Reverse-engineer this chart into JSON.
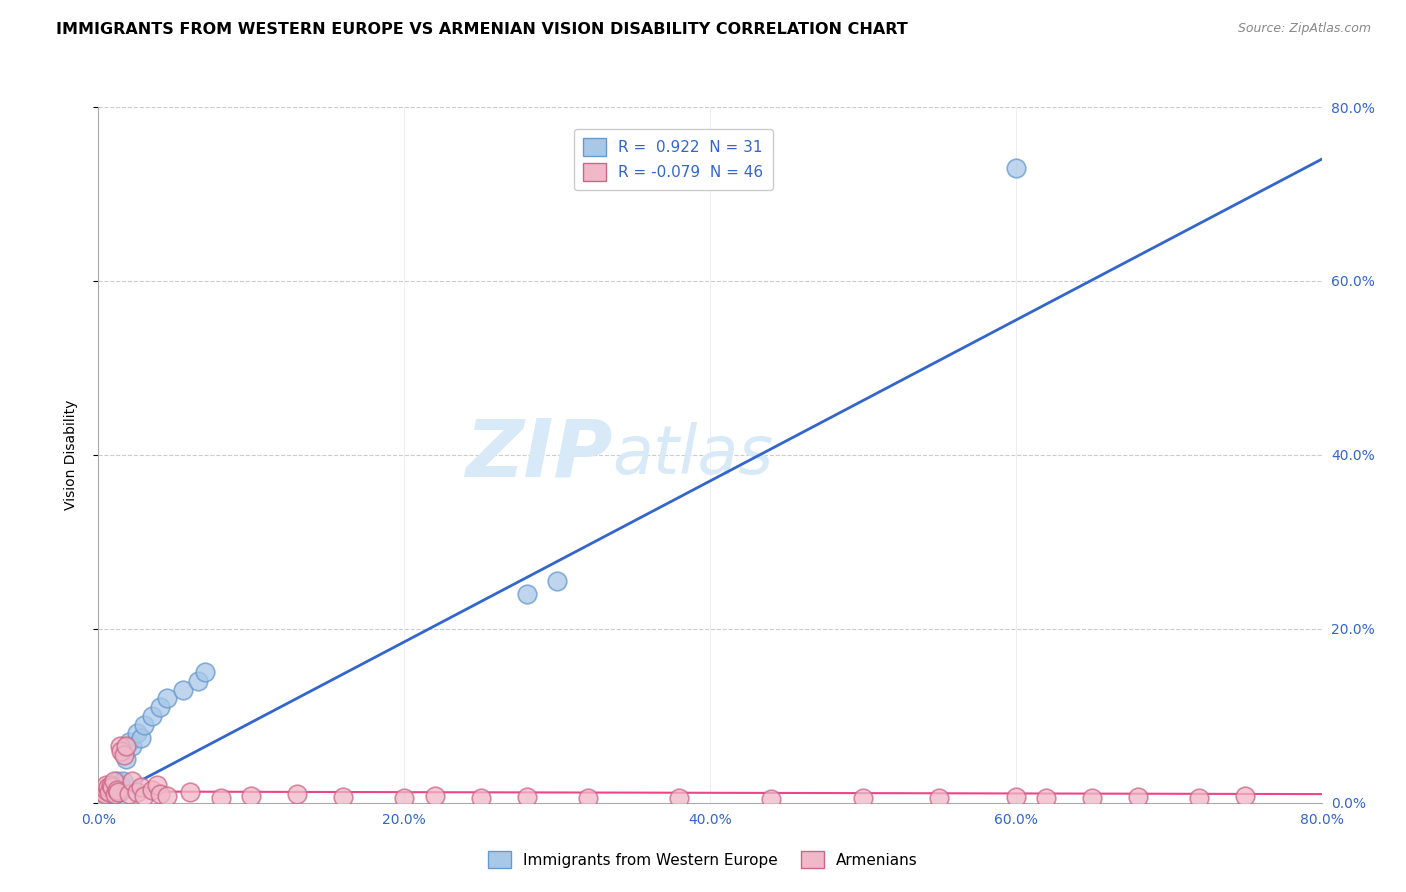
{
  "title": "IMMIGRANTS FROM WESTERN EUROPE VS ARMENIAN VISION DISABILITY CORRELATION CHART",
  "source": "Source: ZipAtlas.com",
  "ylabel": "Vision Disability",
  "xlabel": "",
  "xlim": [
    0.0,
    0.8
  ],
  "ylim": [
    0.0,
    0.8
  ],
  "xticks": [
    0.0,
    0.2,
    0.4,
    0.6,
    0.8
  ],
  "yticks": [
    0.0,
    0.2,
    0.4,
    0.6,
    0.8
  ],
  "color_blue": "#a8c8e8",
  "color_blue_edge": "#6699cc",
  "color_pink": "#f0b8c8",
  "color_pink_edge": "#cc6688",
  "line_blue": "#3366cc",
  "line_pink": "#ee4488",
  "watermark_zip": "ZIP",
  "watermark_atlas": "atlas",
  "watermark_color": "#d8eaf8",
  "title_fontsize": 11.5,
  "source_fontsize": 9,
  "axis_label_fontsize": 10,
  "tick_fontsize": 10,
  "blue_scatter_x": [
    0.002,
    0.003,
    0.004,
    0.005,
    0.006,
    0.007,
    0.008,
    0.009,
    0.01,
    0.011,
    0.012,
    0.013,
    0.014,
    0.015,
    0.016,
    0.017,
    0.018,
    0.02,
    0.022,
    0.025,
    0.028,
    0.03,
    0.035,
    0.04,
    0.045,
    0.055,
    0.065,
    0.07,
    0.28,
    0.3,
    0.6
  ],
  "blue_scatter_y": [
    0.003,
    0.004,
    0.005,
    0.006,
    0.007,
    0.008,
    0.009,
    0.01,
    0.012,
    0.01,
    0.025,
    0.015,
    0.012,
    0.02,
    0.025,
    0.06,
    0.05,
    0.07,
    0.065,
    0.08,
    0.075,
    0.09,
    0.1,
    0.11,
    0.12,
    0.13,
    0.14,
    0.15,
    0.24,
    0.255,
    0.73
  ],
  "pink_scatter_x": [
    0.002,
    0.003,
    0.004,
    0.005,
    0.005,
    0.006,
    0.007,
    0.008,
    0.009,
    0.01,
    0.011,
    0.012,
    0.013,
    0.014,
    0.015,
    0.017,
    0.018,
    0.02,
    0.022,
    0.025,
    0.028,
    0.03,
    0.035,
    0.038,
    0.04,
    0.045,
    0.06,
    0.08,
    0.1,
    0.13,
    0.16,
    0.2,
    0.22,
    0.25,
    0.28,
    0.32,
    0.38,
    0.44,
    0.5,
    0.55,
    0.6,
    0.62,
    0.65,
    0.68,
    0.72,
    0.75
  ],
  "pink_scatter_y": [
    0.008,
    0.012,
    0.01,
    0.015,
    0.02,
    0.018,
    0.012,
    0.02,
    0.018,
    0.025,
    0.01,
    0.015,
    0.012,
    0.065,
    0.06,
    0.055,
    0.065,
    0.01,
    0.025,
    0.012,
    0.018,
    0.008,
    0.015,
    0.02,
    0.01,
    0.008,
    0.012,
    0.005,
    0.008,
    0.01,
    0.007,
    0.005,
    0.008,
    0.005,
    0.007,
    0.006,
    0.005,
    0.004,
    0.006,
    0.005,
    0.007,
    0.006,
    0.005,
    0.007,
    0.006,
    0.008
  ],
  "blue_line_x": [
    0.0,
    0.8
  ],
  "blue_line_y": [
    0.0,
    0.74
  ],
  "pink_line_x": [
    0.0,
    0.8
  ],
  "pink_line_y": [
    0.013,
    0.01
  ]
}
